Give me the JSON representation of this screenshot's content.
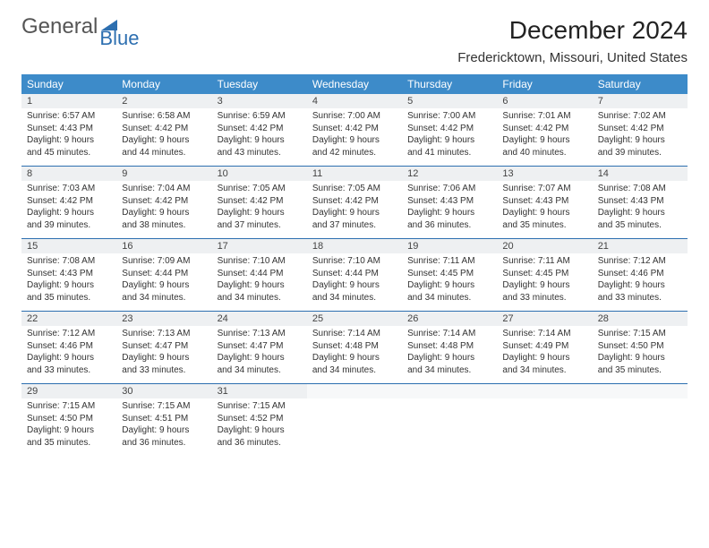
{
  "brand": {
    "part1": "General",
    "part2": "Blue"
  },
  "title": "December 2024",
  "location": "Fredericktown, Missouri, United States",
  "colors": {
    "header_bg": "#3d8bc9",
    "header_text": "#ffffff",
    "daynum_bg": "#eef0f2",
    "rule": "#2d6fb0",
    "brand_blue": "#2d6fb0",
    "text": "#333333",
    "background": "#ffffff"
  },
  "font": {
    "family": "Arial",
    "title_size_pt": 21,
    "location_size_pt": 11,
    "header_size_pt": 9,
    "body_size_pt": 7.5
  },
  "weekdays": [
    "Sunday",
    "Monday",
    "Tuesday",
    "Wednesday",
    "Thursday",
    "Friday",
    "Saturday"
  ],
  "days": [
    {
      "n": "1",
      "sunrise": "6:57 AM",
      "sunset": "4:43 PM",
      "daylight": "9 hours and 45 minutes."
    },
    {
      "n": "2",
      "sunrise": "6:58 AM",
      "sunset": "4:42 PM",
      "daylight": "9 hours and 44 minutes."
    },
    {
      "n": "3",
      "sunrise": "6:59 AM",
      "sunset": "4:42 PM",
      "daylight": "9 hours and 43 minutes."
    },
    {
      "n": "4",
      "sunrise": "7:00 AM",
      "sunset": "4:42 PM",
      "daylight": "9 hours and 42 minutes."
    },
    {
      "n": "5",
      "sunrise": "7:00 AM",
      "sunset": "4:42 PM",
      "daylight": "9 hours and 41 minutes."
    },
    {
      "n": "6",
      "sunrise": "7:01 AM",
      "sunset": "4:42 PM",
      "daylight": "9 hours and 40 minutes."
    },
    {
      "n": "7",
      "sunrise": "7:02 AM",
      "sunset": "4:42 PM",
      "daylight": "9 hours and 39 minutes."
    },
    {
      "n": "8",
      "sunrise": "7:03 AM",
      "sunset": "4:42 PM",
      "daylight": "9 hours and 39 minutes."
    },
    {
      "n": "9",
      "sunrise": "7:04 AM",
      "sunset": "4:42 PM",
      "daylight": "9 hours and 38 minutes."
    },
    {
      "n": "10",
      "sunrise": "7:05 AM",
      "sunset": "4:42 PM",
      "daylight": "9 hours and 37 minutes."
    },
    {
      "n": "11",
      "sunrise": "7:05 AM",
      "sunset": "4:42 PM",
      "daylight": "9 hours and 37 minutes."
    },
    {
      "n": "12",
      "sunrise": "7:06 AM",
      "sunset": "4:43 PM",
      "daylight": "9 hours and 36 minutes."
    },
    {
      "n": "13",
      "sunrise": "7:07 AM",
      "sunset": "4:43 PM",
      "daylight": "9 hours and 35 minutes."
    },
    {
      "n": "14",
      "sunrise": "7:08 AM",
      "sunset": "4:43 PM",
      "daylight": "9 hours and 35 minutes."
    },
    {
      "n": "15",
      "sunrise": "7:08 AM",
      "sunset": "4:43 PM",
      "daylight": "9 hours and 35 minutes."
    },
    {
      "n": "16",
      "sunrise": "7:09 AM",
      "sunset": "4:44 PM",
      "daylight": "9 hours and 34 minutes."
    },
    {
      "n": "17",
      "sunrise": "7:10 AM",
      "sunset": "4:44 PM",
      "daylight": "9 hours and 34 minutes."
    },
    {
      "n": "18",
      "sunrise": "7:10 AM",
      "sunset": "4:44 PM",
      "daylight": "9 hours and 34 minutes."
    },
    {
      "n": "19",
      "sunrise": "7:11 AM",
      "sunset": "4:45 PM",
      "daylight": "9 hours and 34 minutes."
    },
    {
      "n": "20",
      "sunrise": "7:11 AM",
      "sunset": "4:45 PM",
      "daylight": "9 hours and 33 minutes."
    },
    {
      "n": "21",
      "sunrise": "7:12 AM",
      "sunset": "4:46 PM",
      "daylight": "9 hours and 33 minutes."
    },
    {
      "n": "22",
      "sunrise": "7:12 AM",
      "sunset": "4:46 PM",
      "daylight": "9 hours and 33 minutes."
    },
    {
      "n": "23",
      "sunrise": "7:13 AM",
      "sunset": "4:47 PM",
      "daylight": "9 hours and 33 minutes."
    },
    {
      "n": "24",
      "sunrise": "7:13 AM",
      "sunset": "4:47 PM",
      "daylight": "9 hours and 34 minutes."
    },
    {
      "n": "25",
      "sunrise": "7:14 AM",
      "sunset": "4:48 PM",
      "daylight": "9 hours and 34 minutes."
    },
    {
      "n": "26",
      "sunrise": "7:14 AM",
      "sunset": "4:48 PM",
      "daylight": "9 hours and 34 minutes."
    },
    {
      "n": "27",
      "sunrise": "7:14 AM",
      "sunset": "4:49 PM",
      "daylight": "9 hours and 34 minutes."
    },
    {
      "n": "28",
      "sunrise": "7:15 AM",
      "sunset": "4:50 PM",
      "daylight": "9 hours and 35 minutes."
    },
    {
      "n": "29",
      "sunrise": "7:15 AM",
      "sunset": "4:50 PM",
      "daylight": "9 hours and 35 minutes."
    },
    {
      "n": "30",
      "sunrise": "7:15 AM",
      "sunset": "4:51 PM",
      "daylight": "9 hours and 36 minutes."
    },
    {
      "n": "31",
      "sunrise": "7:15 AM",
      "sunset": "4:52 PM",
      "daylight": "9 hours and 36 minutes."
    }
  ],
  "labels": {
    "sunrise": "Sunrise: ",
    "sunset": "Sunset: ",
    "daylight": "Daylight: "
  },
  "layout": {
    "first_weekday_index": 0,
    "total_cells": 35
  }
}
